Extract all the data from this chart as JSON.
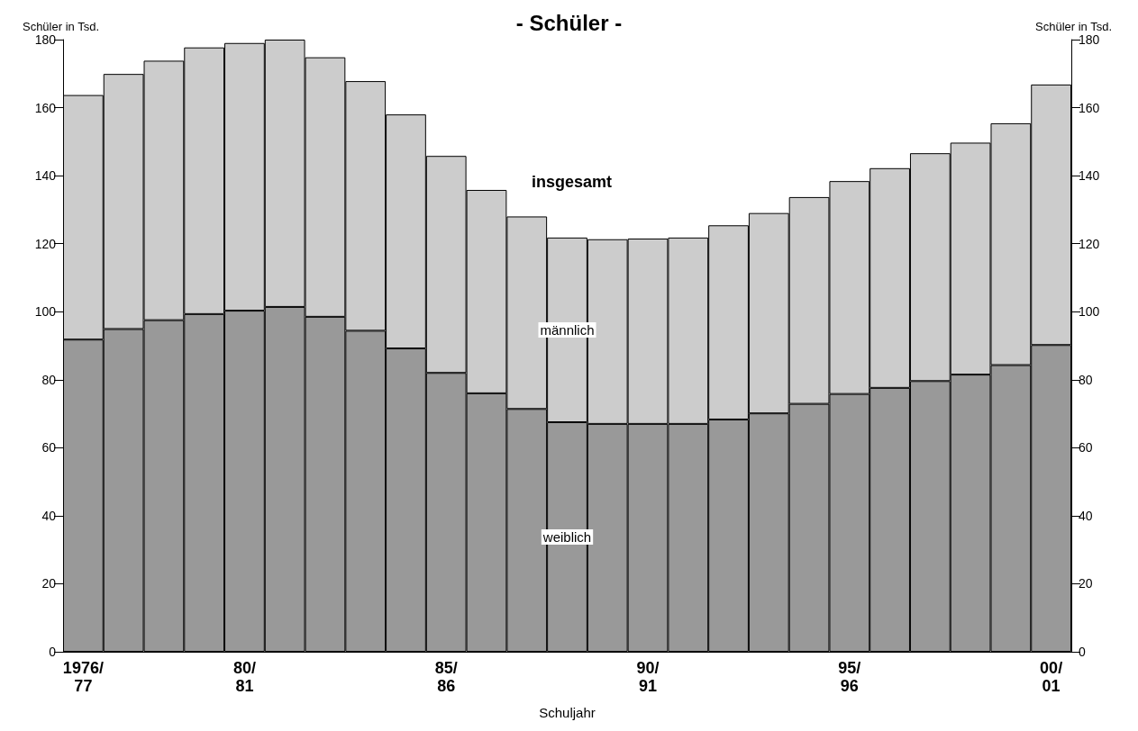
{
  "chart_data": {
    "type": "bar",
    "title": "- Schüler -",
    "xlabel": "Schuljahr",
    "ylabel": "Schüler in Tsd.",
    "y2label": "Schüler in Tsd.",
    "categories": [
      "1976/77",
      null,
      null,
      null,
      "80/81",
      null,
      null,
      null,
      null,
      "85/86",
      null,
      null,
      null,
      null,
      "90/91",
      null,
      null,
      null,
      null,
      "95/96",
      null,
      null,
      null,
      null,
      "00/01"
    ],
    "stacked": true,
    "legend": false,
    "grid": false,
    "series": [
      {
        "name": "weiblich",
        "color": "#999999",
        "values": [
          91.8,
          94.9,
          97.5,
          99.3,
          100.3,
          101.4,
          98.5,
          94.4,
          89.2,
          82,
          76,
          71.4,
          67.5,
          67,
          67,
          67,
          68.3,
          70.1,
          72.9,
          75.8,
          77.6,
          79.6,
          81.5,
          84.3,
          90.2
        ]
      },
      {
        "name": "männlich",
        "color": "#cccccc",
        "values": [
          71.9,
          75,
          76.3,
          78.4,
          78.7,
          78.6,
          76.3,
          73.4,
          68.8,
          63.8,
          59.8,
          56.6,
          54.3,
          54.3,
          54.5,
          54.8,
          57.1,
          58.9,
          60.8,
          62.6,
          64.6,
          67,
          68.2,
          71.1,
          76.6
        ]
      }
    ],
    "annotations": [
      "insgesamt"
    ],
    "ylim": [
      0,
      180
    ],
    "yticks": [
      0,
      20,
      40,
      60,
      80,
      100,
      120,
      140,
      160,
      180
    ],
    "y2lim": [
      0,
      180
    ],
    "y2ticks": [
      0,
      20,
      40,
      60,
      80,
      100,
      120,
      140,
      160,
      180
    ]
  }
}
